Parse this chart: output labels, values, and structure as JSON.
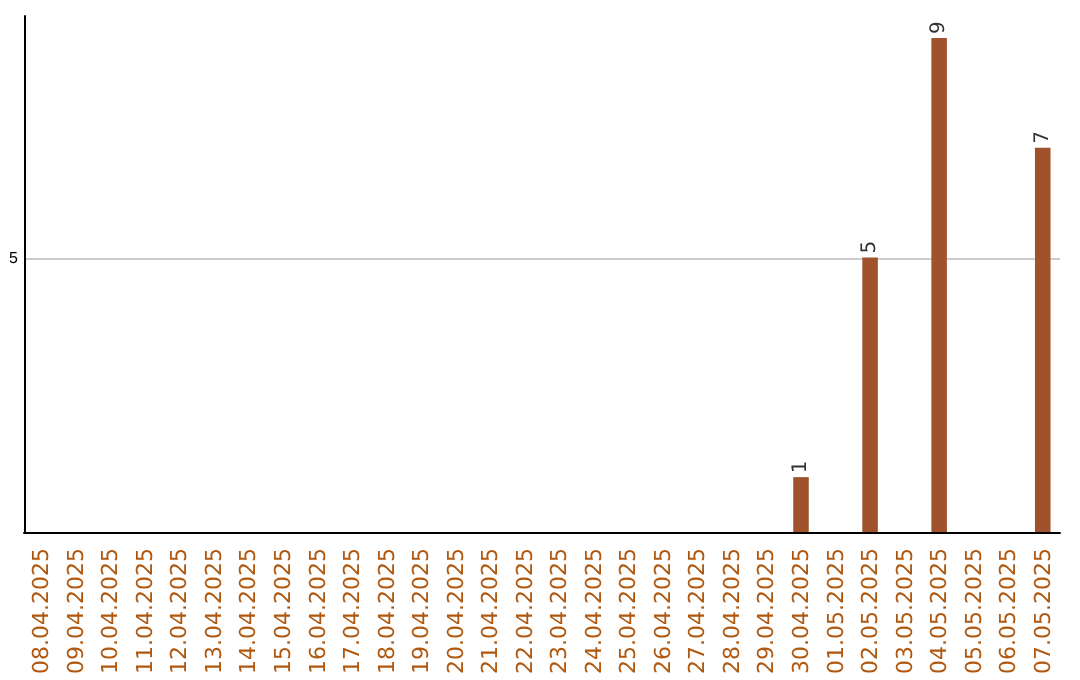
{
  "chart_data": {
    "type": "bar",
    "categories": [
      "08.04.2025",
      "09.04.2025",
      "10.04.2025",
      "11.04.2025",
      "12.04.2025",
      "13.04.2025",
      "14.04.2025",
      "15.04.2025",
      "16.04.2025",
      "17.04.2025",
      "18.04.2025",
      "19.04.2025",
      "20.04.2025",
      "21.04.2025",
      "22.04.2025",
      "23.04.2025",
      "24.04.2025",
      "25.04.2025",
      "26.04.2025",
      "27.04.2025",
      "28.04.2025",
      "29.04.2025",
      "30.04.2025",
      "01.05.2025",
      "02.05.2025",
      "03.05.2025",
      "04.05.2025",
      "05.05.2025",
      "06.05.2025",
      "07.05.2025"
    ],
    "values": [
      null,
      null,
      null,
      null,
      null,
      null,
      null,
      null,
      null,
      null,
      null,
      null,
      null,
      null,
      null,
      null,
      null,
      null,
      null,
      null,
      null,
      null,
      1,
      null,
      5,
      null,
      9,
      null,
      null,
      7
    ],
    "data_labels": true,
    "color": "#a0522d",
    "ylim": [
      0,
      9.4
    ],
    "yticks": [
      5
    ],
    "grid": "y"
  }
}
